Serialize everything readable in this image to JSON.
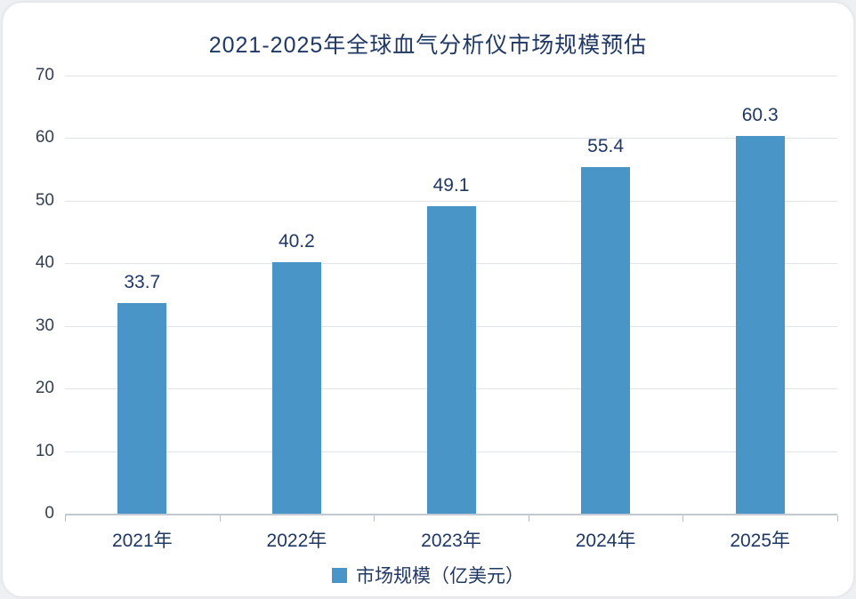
{
  "chart_data": {
    "type": "bar",
    "title": "2021-2025年全球血气分析仪市场规模预估",
    "categories": [
      "2021年",
      "2022年",
      "2023年",
      "2024年",
      "2025年"
    ],
    "values": [
      33.7,
      40.2,
      49.1,
      55.4,
      60.3
    ],
    "value_labels": [
      "33.7",
      "40.2",
      "49.1",
      "55.4",
      "60.3"
    ],
    "legend": "市场规模（亿美元）",
    "legend_position": "bottom",
    "ylim": [
      0,
      70
    ],
    "yticks": [
      0,
      10,
      20,
      30,
      40,
      50,
      60,
      70
    ],
    "grid": true,
    "bar_color": "#4a95c8",
    "text_color": "#1f3864",
    "gridline_color": "#e0e4e9"
  }
}
